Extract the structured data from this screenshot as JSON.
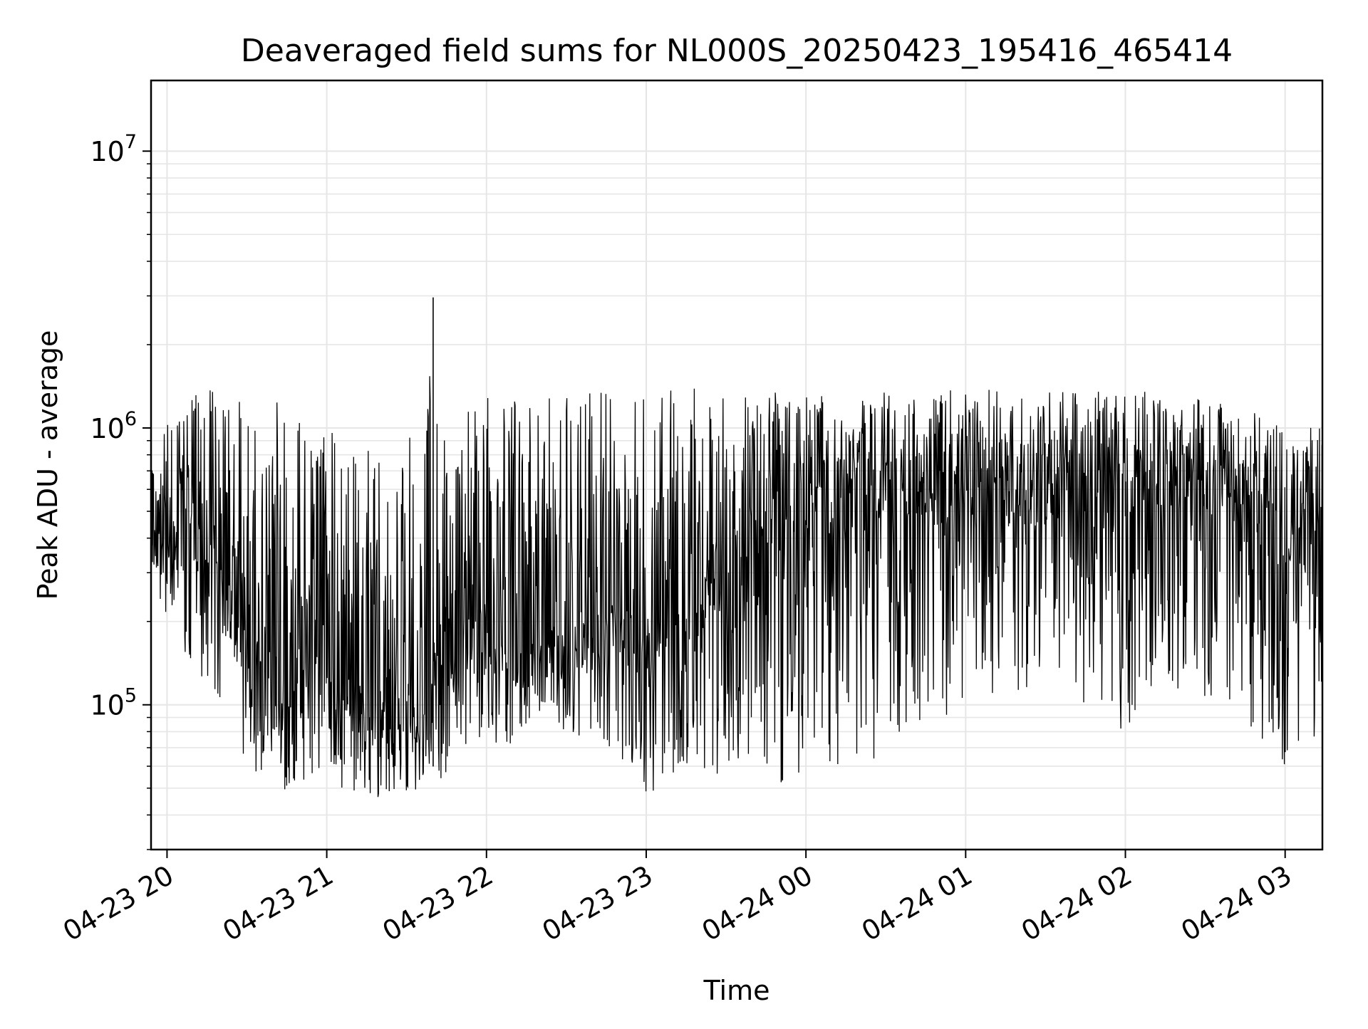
{
  "chart_data": {
    "type": "line",
    "title": "Deaveraged field sums for NL000S_20250423_195416_465414",
    "xlabel": "Time",
    "ylabel": "Peak ADU - average",
    "y_scale": "log",
    "ylim": [
      30000,
      18000000
    ],
    "xlim": [
      "2025-04-23 19:54",
      "2025-04-24 03:14"
    ],
    "grid": true,
    "line_color": "#000000",
    "grid_color": "#e6e6e6",
    "x_ticks": [
      {
        "x": "2025-04-23 20:00",
        "label": "04-23 20"
      },
      {
        "x": "2025-04-23 21:00",
        "label": "04-23 21"
      },
      {
        "x": "2025-04-23 22:00",
        "label": "04-23 22"
      },
      {
        "x": "2025-04-23 23:00",
        "label": "04-23 23"
      },
      {
        "x": "2025-04-24 00:00",
        "label": "04-24 00"
      },
      {
        "x": "2025-04-24 01:00",
        "label": "04-24 01"
      },
      {
        "x": "2025-04-24 02:00",
        "label": "04-24 02"
      },
      {
        "x": "2025-04-24 03:00",
        "label": "04-24 03"
      }
    ],
    "y_ticks": [
      {
        "value": 100000,
        "base": "10",
        "exp": "5"
      },
      {
        "value": 1000000,
        "base": "10",
        "exp": "6"
      },
      {
        "value": 10000000,
        "base": "10",
        "exp": "7"
      }
    ],
    "series": [
      {
        "x": [
          "2025-04-23 19:54",
          "2025-04-23 20:00",
          "2025-04-23 20:06",
          "2025-04-23 20:12",
          "2025-04-23 20:18",
          "2025-04-23 20:24",
          "2025-04-23 20:30",
          "2025-04-23 20:36",
          "2025-04-23 20:42",
          "2025-04-23 20:48",
          "2025-04-23 20:54",
          "2025-04-23 21:00",
          "2025-04-23 21:06",
          "2025-04-23 21:12",
          "2025-04-23 21:18",
          "2025-04-23 21:24",
          "2025-04-23 21:30",
          "2025-04-23 21:36",
          "2025-04-23 21:40",
          "2025-04-23 21:42",
          "2025-04-23 21:48",
          "2025-04-23 21:54",
          "2025-04-23 22:00",
          "2025-04-23 22:06",
          "2025-04-23 22:12",
          "2025-04-23 22:18",
          "2025-04-23 22:24",
          "2025-04-23 22:30",
          "2025-04-23 22:36",
          "2025-04-23 22:42",
          "2025-04-23 22:48",
          "2025-04-23 22:54",
          "2025-04-23 23:00",
          "2025-04-23 23:06",
          "2025-04-23 23:12",
          "2025-04-23 23:18",
          "2025-04-23 23:24",
          "2025-04-23 23:30",
          "2025-04-23 23:36",
          "2025-04-23 23:42",
          "2025-04-23 23:48",
          "2025-04-23 23:54",
          "2025-04-24 00:00",
          "2025-04-24 00:06",
          "2025-04-24 00:12",
          "2025-04-24 00:18",
          "2025-04-24 00:24",
          "2025-04-24 00:30",
          "2025-04-24 00:36",
          "2025-04-24 00:42",
          "2025-04-24 00:48",
          "2025-04-24 00:54",
          "2025-04-24 01:00",
          "2025-04-24 01:06",
          "2025-04-24 01:12",
          "2025-04-24 01:18",
          "2025-04-24 01:24",
          "2025-04-24 01:30",
          "2025-04-24 01:36",
          "2025-04-24 01:42",
          "2025-04-24 01:48",
          "2025-04-24 01:54",
          "2025-04-24 02:00",
          "2025-04-24 02:06",
          "2025-04-24 02:12",
          "2025-04-24 02:18",
          "2025-04-24 02:24",
          "2025-04-24 02:30",
          "2025-04-24 02:36",
          "2025-04-24 02:42",
          "2025-04-24 02:48",
          "2025-04-24 02:54",
          "2025-04-24 03:00",
          "2025-04-24 03:06",
          "2025-04-24 03:14"
        ],
        "y_high": [
          700000,
          1100000,
          1300000,
          1350000,
          1400000,
          1200000,
          1350000,
          1300000,
          1400000,
          1100000,
          1000000,
          1100000,
          1000000,
          900000,
          800000,
          900000,
          1050000,
          650000,
          3000000,
          1300000,
          700000,
          1350000,
          1400000,
          1350000,
          1450000,
          1350000,
          1300000,
          1350000,
          1400000,
          1350000,
          1400000,
          1300000,
          1450000,
          1400000,
          1400000,
          1400000,
          1350000,
          1350000,
          1400000,
          1350000,
          1350000,
          1350000,
          1300000,
          1350000,
          1350000,
          1250000,
          1300000,
          1350000,
          1300000,
          1400000,
          1350000,
          1400000,
          1400000,
          1350000,
          1450000,
          1400000,
          1300000,
          1350000,
          1400000,
          1450000,
          1350000,
          1400000,
          1300000,
          1350000,
          1400000,
          1300000,
          1300000,
          1350000,
          1250000,
          1200000,
          1150000,
          1100000,
          1050000,
          1050000,
          1000000
        ],
        "y_low": [
          250000,
          200000,
          160000,
          120000,
          110000,
          70000,
          60000,
          55000,
          45000,
          52000,
          55000,
          52000,
          48000,
          46000,
          45000,
          46000,
          48000,
          45000,
          60000,
          52000,
          62000,
          75000,
          60000,
          65000,
          80000,
          90000,
          95000,
          75000,
          72000,
          70000,
          65000,
          62000,
          45000,
          52000,
          58000,
          55000,
          52000,
          56000,
          58000,
          56000,
          52000,
          52000,
          55000,
          60000,
          58000,
          60000,
          62000,
          64000,
          70000,
          75000,
          85000,
          90000,
          95000,
          100000,
          110000,
          100000,
          95000,
          100000,
          105000,
          90000,
          100000,
          95000,
          75000,
          105000,
          110000,
          100000,
          95000,
          100000,
          90000,
          85000,
          80000,
          70000,
          60000,
          55000,
          85000
        ],
        "y_typical": [
          380000,
          420000,
          480000,
          420000,
          350000,
          230000,
          160000,
          130000,
          110000,
          125000,
          135000,
          145000,
          120000,
          110000,
          105000,
          100000,
          110000,
          100000,
          150000,
          145000,
          165000,
          185000,
          180000,
          170000,
          150000,
          160000,
          170000,
          175000,
          180000,
          200000,
          210000,
          220000,
          180000,
          190000,
          200000,
          230000,
          260000,
          320000,
          420000,
          500000,
          520000,
          540000,
          560000,
          580000,
          600000,
          620000,
          640000,
          630000,
          650000,
          660000,
          640000,
          650000,
          670000,
          660000,
          650000,
          640000,
          630000,
          620000,
          640000,
          650000,
          660000,
          640000,
          620000,
          650000,
          680000,
          700000,
          690000,
          670000,
          620000,
          560000,
          520000,
          480000,
          450000,
          420000,
          400000
        ]
      }
    ]
  }
}
